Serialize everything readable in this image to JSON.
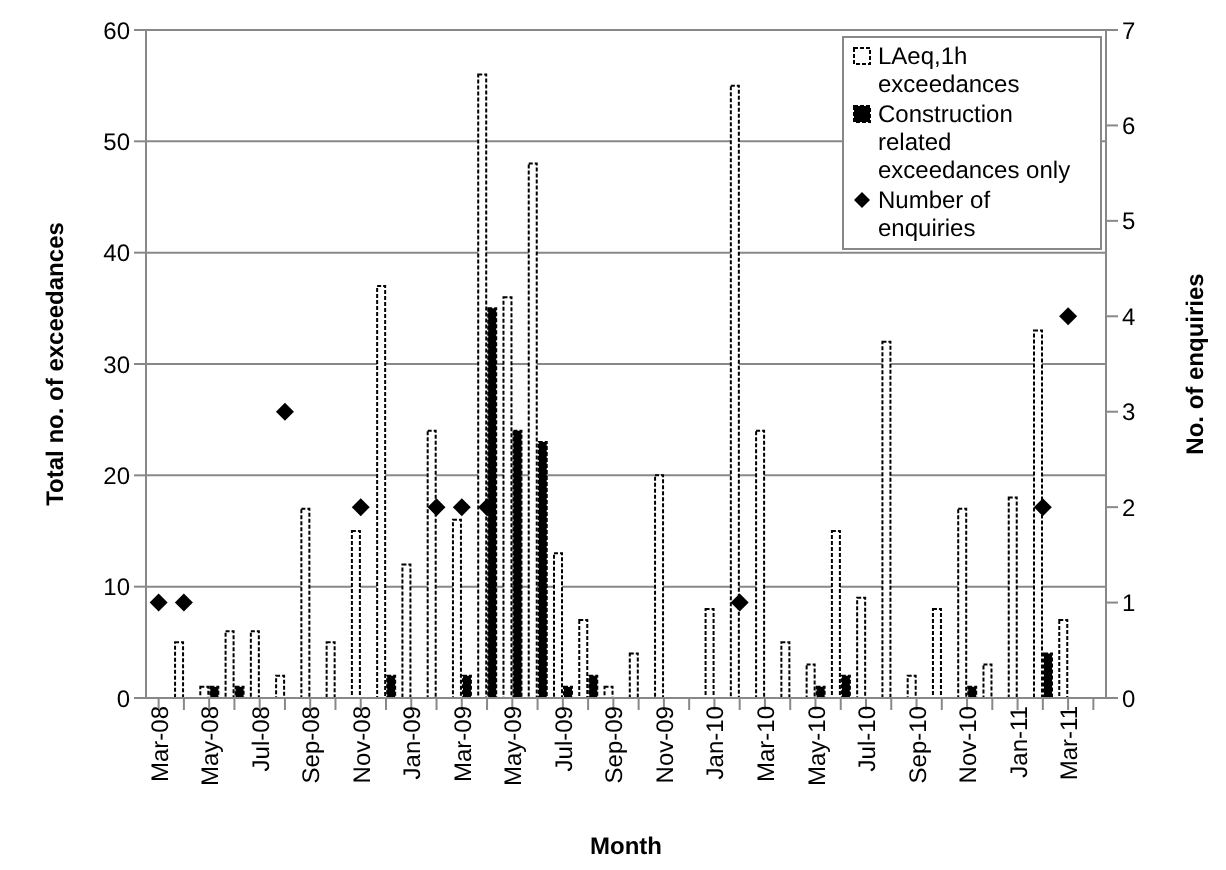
{
  "chart_data": {
    "type": "bar",
    "xlabel": "Month",
    "ylabel": "Total no. of exceedances",
    "y2label": "No. of enquiries",
    "categories": [
      "Mar-08",
      null,
      "May-08",
      null,
      "Jul-08",
      null,
      "Sep-08",
      null,
      "Nov-08",
      null,
      "Jan-09",
      null,
      "Mar-09",
      null,
      "May-09",
      null,
      "Jul-09",
      null,
      "Sep-09",
      null,
      "Nov-09",
      null,
      "Jan-10",
      null,
      "Mar-10",
      null,
      "May-10",
      null,
      "Jul-10",
      null,
      "Sep-10",
      null,
      "Nov-10",
      null,
      "Jan-11",
      null,
      "Mar-11",
      null
    ],
    "series": [
      {
        "name": "LAeq,1h exceedances",
        "color": "#ffffff",
        "values": [
          null,
          5,
          1,
          6,
          6,
          2,
          17,
          5,
          15,
          37,
          12,
          24,
          16,
          56,
          36,
          48,
          13,
          7,
          1,
          4,
          20,
          null,
          8,
          55,
          24,
          5,
          3,
          15,
          9,
          32,
          2,
          8,
          17,
          3,
          18,
          33,
          7,
          null
        ]
      },
      {
        "name": "Construction related exceedances only",
        "color": "#000000",
        "values": [
          null,
          null,
          1,
          1,
          null,
          null,
          null,
          null,
          null,
          2,
          null,
          null,
          2,
          35,
          24,
          23,
          1,
          2,
          null,
          null,
          null,
          null,
          null,
          null,
          null,
          null,
          1,
          2,
          null,
          null,
          null,
          null,
          1,
          null,
          null,
          4,
          null,
          null
        ]
      },
      {
        "name": "Number of enquiries",
        "type": "scatter",
        "axis": "y2",
        "marker": "diamond",
        "color": "#000000",
        "values": [
          1,
          1,
          null,
          null,
          null,
          3,
          null,
          null,
          2,
          null,
          null,
          2,
          2,
          2,
          null,
          null,
          null,
          null,
          null,
          null,
          null,
          null,
          null,
          1,
          null,
          null,
          null,
          null,
          null,
          null,
          null,
          null,
          null,
          null,
          null,
          2,
          4,
          null
        ]
      }
    ],
    "ylim": [
      0,
      60
    ],
    "yticks": [
      0,
      10,
      20,
      30,
      40,
      50,
      60
    ],
    "y2lim": [
      0,
      7
    ],
    "y2ticks": [
      0,
      1,
      2,
      3,
      4,
      5,
      6,
      7
    ],
    "grid": "y",
    "legend": "top right"
  }
}
